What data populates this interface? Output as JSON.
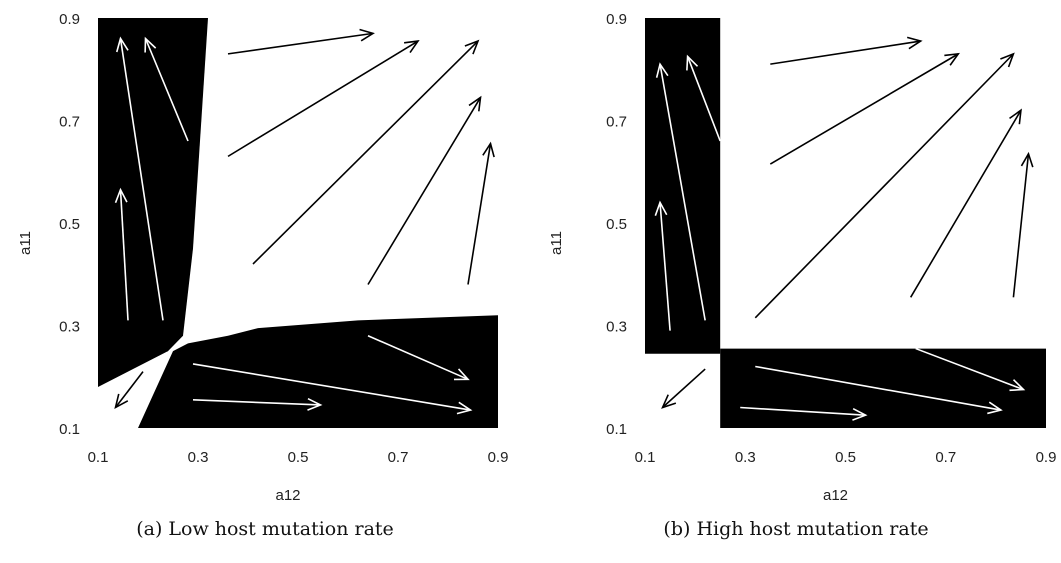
{
  "chart_data": [
    {
      "type": "vector-field",
      "caption": "(a) Low host mutation rate",
      "xlabel": "a12",
      "ylabel": "a11",
      "xlim": [
        0.1,
        0.9
      ],
      "ylim": [
        0.1,
        0.9
      ],
      "xticks": [
        "0.1",
        "0.3",
        "0.5",
        "0.7",
        "0.9"
      ],
      "yticks": [
        "0.1",
        "0.3",
        "0.5",
        "0.7",
        "0.9"
      ],
      "colors": {
        "region": "#000000",
        "arrow_on_black": "#ffffff",
        "arrow_on_white": "#000000"
      },
      "black_regions": [
        {
          "name": "upper-left-region",
          "points": [
            [
              0.1,
              0.9
            ],
            [
              0.32,
              0.9
            ],
            [
              0.29,
              0.45
            ],
            [
              0.27,
              0.28
            ],
            [
              0.24,
              0.25
            ],
            [
              0.1,
              0.18
            ]
          ]
        },
        {
          "name": "lower-right-region",
          "points": [
            [
              0.18,
              0.1
            ],
            [
              0.9,
              0.1
            ],
            [
              0.9,
              0.32
            ],
            [
              0.62,
              0.31
            ],
            [
              0.42,
              0.295
            ],
            [
              0.36,
              0.28
            ],
            [
              0.28,
              0.265
            ],
            [
              0.25,
              0.25
            ]
          ]
        }
      ],
      "arrows": [
        {
          "from": [
            0.16,
            0.31
          ],
          "to": [
            0.145,
            0.565
          ],
          "color": "white"
        },
        {
          "from": [
            0.23,
            0.31
          ],
          "to": [
            0.145,
            0.86
          ],
          "color": "white"
        },
        {
          "from": [
            0.28,
            0.66
          ],
          "to": [
            0.195,
            0.86
          ],
          "color": "white"
        },
        {
          "from": [
            0.19,
            0.21
          ],
          "to": [
            0.135,
            0.14
          ],
          "color": "black"
        },
        {
          "from": [
            0.36,
            0.83
          ],
          "to": [
            0.65,
            0.87
          ],
          "color": "black"
        },
        {
          "from": [
            0.36,
            0.63
          ],
          "to": [
            0.74,
            0.855
          ],
          "color": "black"
        },
        {
          "from": [
            0.41,
            0.42
          ],
          "to": [
            0.86,
            0.855
          ],
          "color": "black"
        },
        {
          "from": [
            0.64,
            0.38
          ],
          "to": [
            0.865,
            0.745
          ],
          "color": "black"
        },
        {
          "from": [
            0.84,
            0.38
          ],
          "to": [
            0.885,
            0.655
          ],
          "color": "black"
        },
        {
          "from": [
            0.29,
            0.225
          ],
          "to": [
            0.845,
            0.135
          ],
          "color": "white"
        },
        {
          "from": [
            0.29,
            0.155
          ],
          "to": [
            0.545,
            0.145
          ],
          "color": "white"
        },
        {
          "from": [
            0.64,
            0.28
          ],
          "to": [
            0.84,
            0.195
          ],
          "color": "white"
        }
      ]
    },
    {
      "type": "vector-field",
      "caption": "(b) High host mutation rate",
      "xlabel": "a12",
      "ylabel": "a11",
      "xlim": [
        0.1,
        0.9
      ],
      "ylim": [
        0.1,
        0.9
      ],
      "xticks": [
        "0.1",
        "0.3",
        "0.5",
        "0.7",
        "0.9"
      ],
      "yticks": [
        "0.1",
        "0.3",
        "0.5",
        "0.7",
        "0.9"
      ],
      "colors": {
        "region": "#000000",
        "arrow_on_black": "#ffffff",
        "arrow_on_white": "#000000"
      },
      "black_regions": [
        {
          "name": "upper-left-region",
          "points": [
            [
              0.1,
              0.9
            ],
            [
              0.25,
              0.9
            ],
            [
              0.25,
              0.245
            ],
            [
              0.1,
              0.245
            ]
          ]
        },
        {
          "name": "lower-right-region",
          "points": [
            [
              0.25,
              0.1
            ],
            [
              0.9,
              0.1
            ],
            [
              0.9,
              0.255
            ],
            [
              0.25,
              0.255
            ]
          ]
        }
      ],
      "arrows": [
        {
          "from": [
            0.15,
            0.29
          ],
          "to": [
            0.13,
            0.54
          ],
          "color": "white"
        },
        {
          "from": [
            0.22,
            0.31
          ],
          "to": [
            0.13,
            0.81
          ],
          "color": "white"
        },
        {
          "from": [
            0.25,
            0.66
          ],
          "to": [
            0.185,
            0.825
          ],
          "color": "white"
        },
        {
          "from": [
            0.22,
            0.215
          ],
          "to": [
            0.135,
            0.14
          ],
          "color": "black"
        },
        {
          "from": [
            0.35,
            0.81
          ],
          "to": [
            0.65,
            0.855
          ],
          "color": "black"
        },
        {
          "from": [
            0.35,
            0.615
          ],
          "to": [
            0.725,
            0.83
          ],
          "color": "black"
        },
        {
          "from": [
            0.32,
            0.315
          ],
          "to": [
            0.835,
            0.83
          ],
          "color": "black"
        },
        {
          "from": [
            0.63,
            0.355
          ],
          "to": [
            0.85,
            0.72
          ],
          "color": "black"
        },
        {
          "from": [
            0.835,
            0.355
          ],
          "to": [
            0.865,
            0.635
          ],
          "color": "black"
        },
        {
          "from": [
            0.32,
            0.22
          ],
          "to": [
            0.81,
            0.135
          ],
          "color": "white"
        },
        {
          "from": [
            0.29,
            0.14
          ],
          "to": [
            0.54,
            0.125
          ],
          "color": "white"
        },
        {
          "from": [
            0.64,
            0.255
          ],
          "to": [
            0.855,
            0.175
          ],
          "color": "white"
        }
      ]
    }
  ]
}
